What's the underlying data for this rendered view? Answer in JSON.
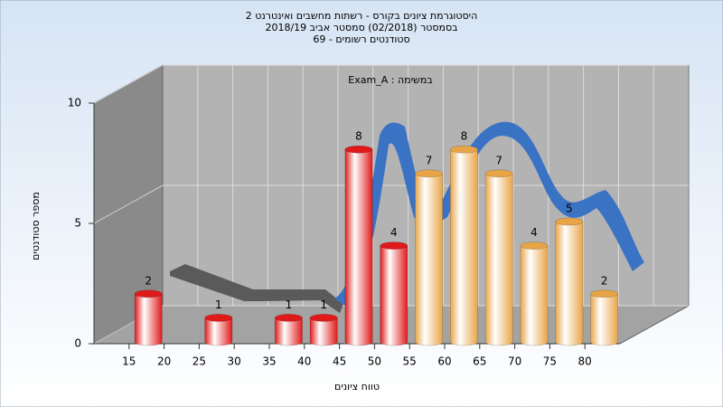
{
  "chart_data": {
    "type": "histogram",
    "title": "היסטוגרמת ציונים בקורס - רשתות מחשבים ואינטרנט 2",
    "subtitle": "בסמסטר  (02/2018)  סמסטר אביב 2018/19",
    "subtitle2": "סטודנטים רשומים - 69",
    "annotation": "Exam_A : במשימה",
    "x_label": "טווח ציונים",
    "y_label": "מספר סטודנטים",
    "bins": [
      15,
      20,
      25,
      30,
      35,
      40,
      45,
      50,
      55,
      60,
      65,
      70,
      75,
      80,
      85
    ],
    "values": [
      2,
      0,
      1,
      0,
      1,
      1,
      8,
      4,
      7,
      8,
      7,
      4,
      5,
      2
    ],
    "colors": [
      "#e01a1a",
      "#e01a1a",
      "#e01a1a",
      "#e01a1a",
      "#e01a1a",
      "#e01a1a",
      "#e01a1a",
      "#e01a1a",
      "#e8a548",
      "#e8a548",
      "#e8a548",
      "#e8a548",
      "#e8a548",
      "#e8a548"
    ],
    "xlim": [
      10,
      85
    ],
    "xticks": [
      15,
      20,
      25,
      30,
      35,
      40,
      45,
      50,
      55,
      60,
      65,
      70,
      75,
      80
    ],
    "ylim": [
      0,
      10
    ],
    "yticks": [
      0,
      5,
      10
    ],
    "grid": true
  }
}
